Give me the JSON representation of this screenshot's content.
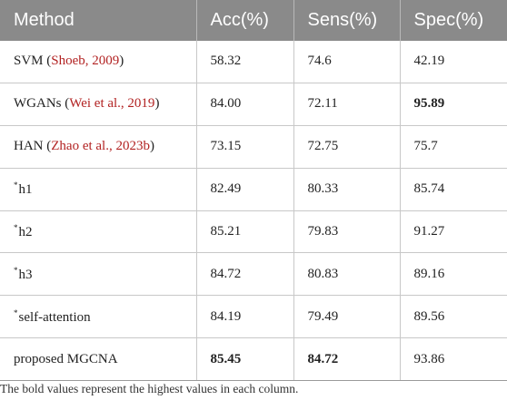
{
  "table": {
    "headers": [
      "Method",
      "Acc(%)",
      "Sens(%)",
      "Spec(%)"
    ],
    "rows": [
      {
        "method": "SVM",
        "citation": "Shoeb, 2009",
        "star": false,
        "acc": "58.32",
        "sens": "74.6",
        "spec": "42.19",
        "bold": []
      },
      {
        "method": "WGANs",
        "citation": "Wei et al., 2019",
        "star": false,
        "acc": "84.00",
        "sens": "72.11",
        "spec": "95.89",
        "bold": [
          "spec"
        ]
      },
      {
        "method": "HAN",
        "citation": "Zhao et al., 2023b",
        "star": false,
        "acc": "73.15",
        "sens": "72.75",
        "spec": "75.7",
        "bold": []
      },
      {
        "method": "h1",
        "citation": "",
        "star": true,
        "acc": "82.49",
        "sens": "80.33",
        "spec": "85.74",
        "bold": []
      },
      {
        "method": "h2",
        "citation": "",
        "star": true,
        "acc": "85.21",
        "sens": "79.83",
        "spec": "91.27",
        "bold": []
      },
      {
        "method": "h3",
        "citation": "",
        "star": true,
        "acc": "84.72",
        "sens": "80.83",
        "spec": "89.16",
        "bold": []
      },
      {
        "method": "self-attention",
        "citation": "",
        "star": true,
        "acc": "84.19",
        "sens": "79.49",
        "spec": "89.56",
        "bold": []
      },
      {
        "method": "proposed MGCNA",
        "citation": "",
        "star": false,
        "acc": "85.45",
        "sens": "84.72",
        "spec": "93.86",
        "bold": [
          "acc",
          "sens"
        ]
      }
    ]
  },
  "footnote": "The bold values represent the highest values in each column.",
  "colors": {
    "header_bg": "#8a8a8a",
    "citation": "#b22222"
  }
}
